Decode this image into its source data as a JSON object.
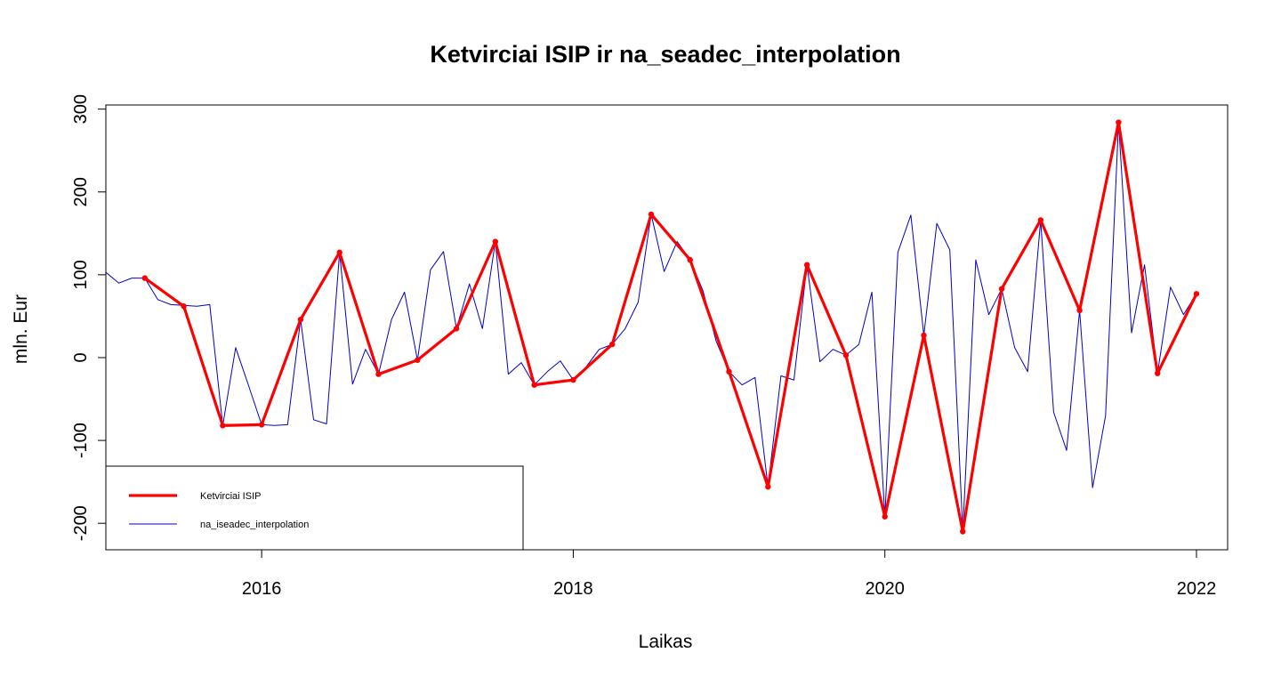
{
  "chart_data": {
    "type": "line",
    "title": "Ketvirciai ISIP ir na_seadec_interpolation",
    "xlabel": "Laikas",
    "ylabel": "mln. Eur",
    "xlim": [
      2015.0,
      2022.2
    ],
    "ylim": [
      -232,
      305
    ],
    "x_ticks": [
      2016,
      2018,
      2020,
      2022
    ],
    "y_ticks": [
      -200,
      -100,
      0,
      100,
      200,
      300
    ],
    "grid": false,
    "legend_position": "bottom-left",
    "series": [
      {
        "name": "Ketvirciai ISIP",
        "color": "#ff0000",
        "marker": "point",
        "x": [
          2015.25,
          2015.5,
          2015.75,
          2016.0,
          2016.25,
          2016.5,
          2016.75,
          2017.0,
          2017.25,
          2017.5,
          2017.75,
          2018.0,
          2018.25,
          2018.5,
          2018.75,
          2019.0,
          2019.25,
          2019.5,
          2019.75,
          2020.0,
          2020.25,
          2020.5,
          2020.75,
          2021.0,
          2021.25,
          2021.5,
          2021.75,
          2022.0
        ],
        "values": [
          96,
          62,
          -82,
          -81,
          46,
          127,
          -20,
          -3,
          35,
          140,
          -33,
          -27,
          16,
          173,
          118,
          -17,
          -156,
          112,
          3,
          -192,
          27,
          -210,
          83,
          166,
          57,
          284,
          -19,
          77
        ]
      },
      {
        "name": "na_iseadec_interpolation",
        "color": "#0000cc",
        "marker": "none",
        "x": [
          2015.0,
          2015.0833,
          2015.1667,
          2015.25,
          2015.3333,
          2015.4167,
          2015.5,
          2015.5833,
          2015.6667,
          2015.75,
          2015.8333,
          2015.9167,
          2016.0,
          2016.0833,
          2016.1667,
          2016.25,
          2016.3333,
          2016.4167,
          2016.5,
          2016.5833,
          2016.6667,
          2016.75,
          2016.8333,
          2016.9167,
          2017.0,
          2017.0833,
          2017.1667,
          2017.25,
          2017.3333,
          2017.4167,
          2017.5,
          2017.5833,
          2017.6667,
          2017.75,
          2017.8333,
          2017.9167,
          2018.0,
          2018.0833,
          2018.1667,
          2018.25,
          2018.3333,
          2018.4167,
          2018.5,
          2018.5833,
          2018.6667,
          2018.75,
          2018.8333,
          2018.9167,
          2019.0,
          2019.0833,
          2019.1667,
          2019.25,
          2019.3333,
          2019.4167,
          2019.5,
          2019.5833,
          2019.6667,
          2019.75,
          2019.8333,
          2019.9167,
          2020.0,
          2020.0833,
          2020.1667,
          2020.25,
          2020.3333,
          2020.4167,
          2020.5,
          2020.5833,
          2020.6667,
          2020.75,
          2020.8333,
          2020.9167,
          2021.0,
          2021.0833,
          2021.1667,
          2021.25,
          2021.3333,
          2021.4167,
          2021.5,
          2021.5833,
          2021.6667,
          2021.75,
          2021.8333,
          2021.9167,
          2022.0
        ],
        "values": [
          103,
          90,
          96,
          96,
          70,
          64,
          63,
          62,
          64,
          -82,
          12,
          -34,
          -81,
          -82,
          -81,
          46,
          -75,
          -80,
          127,
          -32,
          10,
          -20,
          46,
          79,
          -3,
          106,
          128,
          35,
          89,
          35,
          140,
          -20,
          -6,
          -33,
          -17,
          -4,
          -27,
          -11,
          10,
          16,
          35,
          67,
          173,
          104,
          140,
          118,
          80,
          20,
          -17,
          -33,
          -24,
          -156,
          -22,
          -27,
          112,
          -5,
          10,
          3,
          16,
          79,
          -192,
          127,
          172,
          27,
          162,
          130,
          -210,
          118,
          52,
          83,
          12,
          -17,
          166,
          -66,
          -112,
          57,
          -157,
          -70,
          284,
          30,
          112,
          -19,
          85,
          52,
          77
        ]
      }
    ]
  }
}
